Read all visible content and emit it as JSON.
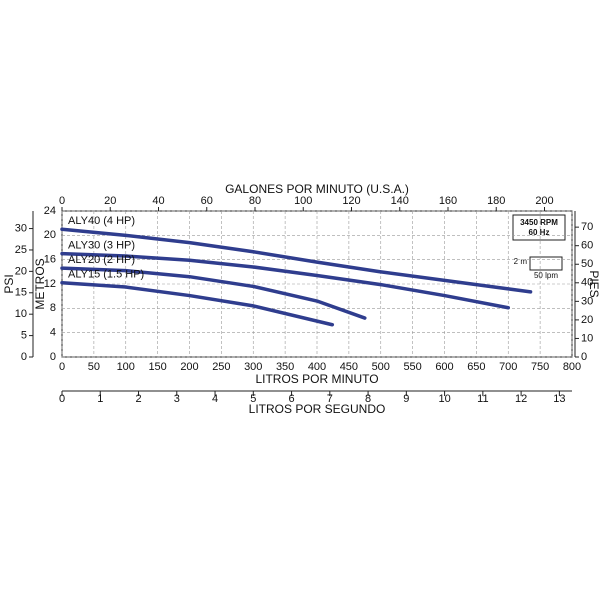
{
  "chart_data": {
    "type": "line",
    "xlabel": "LITROS POR MINUTO",
    "ylabel": "METROS",
    "xlim": [
      0,
      800
    ],
    "xticks": [
      0,
      50,
      100,
      150,
      200,
      250,
      300,
      350,
      400,
      450,
      500,
      550,
      600,
      650,
      700,
      750,
      800
    ],
    "ylim": [
      0,
      24
    ],
    "yticks": [
      0,
      4,
      8,
      12,
      16,
      20,
      24
    ],
    "x2label": "GALONES POR MINUTO (U.S.A.)",
    "x2lim": [
      0,
      211.4
    ],
    "x2ticks": [
      0,
      20,
      40,
      60,
      80,
      100,
      120,
      140,
      160,
      180,
      200
    ],
    "x3label": "LITROS POR SEGUNDO",
    "x3lim": [
      0,
      13.33
    ],
    "x3ticks": [
      0,
      1,
      2,
      3,
      4,
      5,
      6,
      7,
      8,
      9,
      10,
      11,
      12,
      13
    ],
    "y2label": "PSI",
    "y2lim": [
      0,
      34.1
    ],
    "y2ticks": [
      0,
      5,
      10,
      15,
      20,
      25,
      30
    ],
    "y3label": "PIES",
    "y3lim": [
      0,
      78.7
    ],
    "y3ticks": [
      0,
      10,
      20,
      30,
      40,
      50,
      60,
      70
    ],
    "grid": true,
    "annotations": [
      "3450 RPM",
      "60 Hz",
      "2 m",
      "50 lpm"
    ],
    "series": [
      {
        "name": "ALY40 (4 HP)",
        "color": "#2f3d8e",
        "x": [
          0,
          100,
          200,
          300,
          400,
          500,
          600,
          700,
          735
        ],
        "values": [
          21,
          20,
          18.8,
          17.3,
          15.6,
          14.0,
          12.6,
          11.2,
          10.7
        ]
      },
      {
        "name": "ALY30 (3 HP)",
        "color": "#2f3d8e",
        "x": [
          0,
          100,
          200,
          300,
          400,
          500,
          600,
          700
        ],
        "values": [
          17,
          16.6,
          15.9,
          14.8,
          13.4,
          11.9,
          10.1,
          8.1
        ]
      },
      {
        "name": "ALY20 (2 HP)",
        "color": "#2f3d8e",
        "x": [
          0,
          100,
          200,
          300,
          400,
          475
        ],
        "values": [
          14.6,
          14.2,
          13.2,
          11.6,
          9.2,
          6.4
        ]
      },
      {
        "name": "ALY15 (1.5 HP)",
        "color": "#2f3d8e",
        "x": [
          0,
          100,
          200,
          300,
          424
        ],
        "values": [
          12.2,
          11.5,
          10.1,
          8.4,
          5.3
        ]
      }
    ]
  }
}
